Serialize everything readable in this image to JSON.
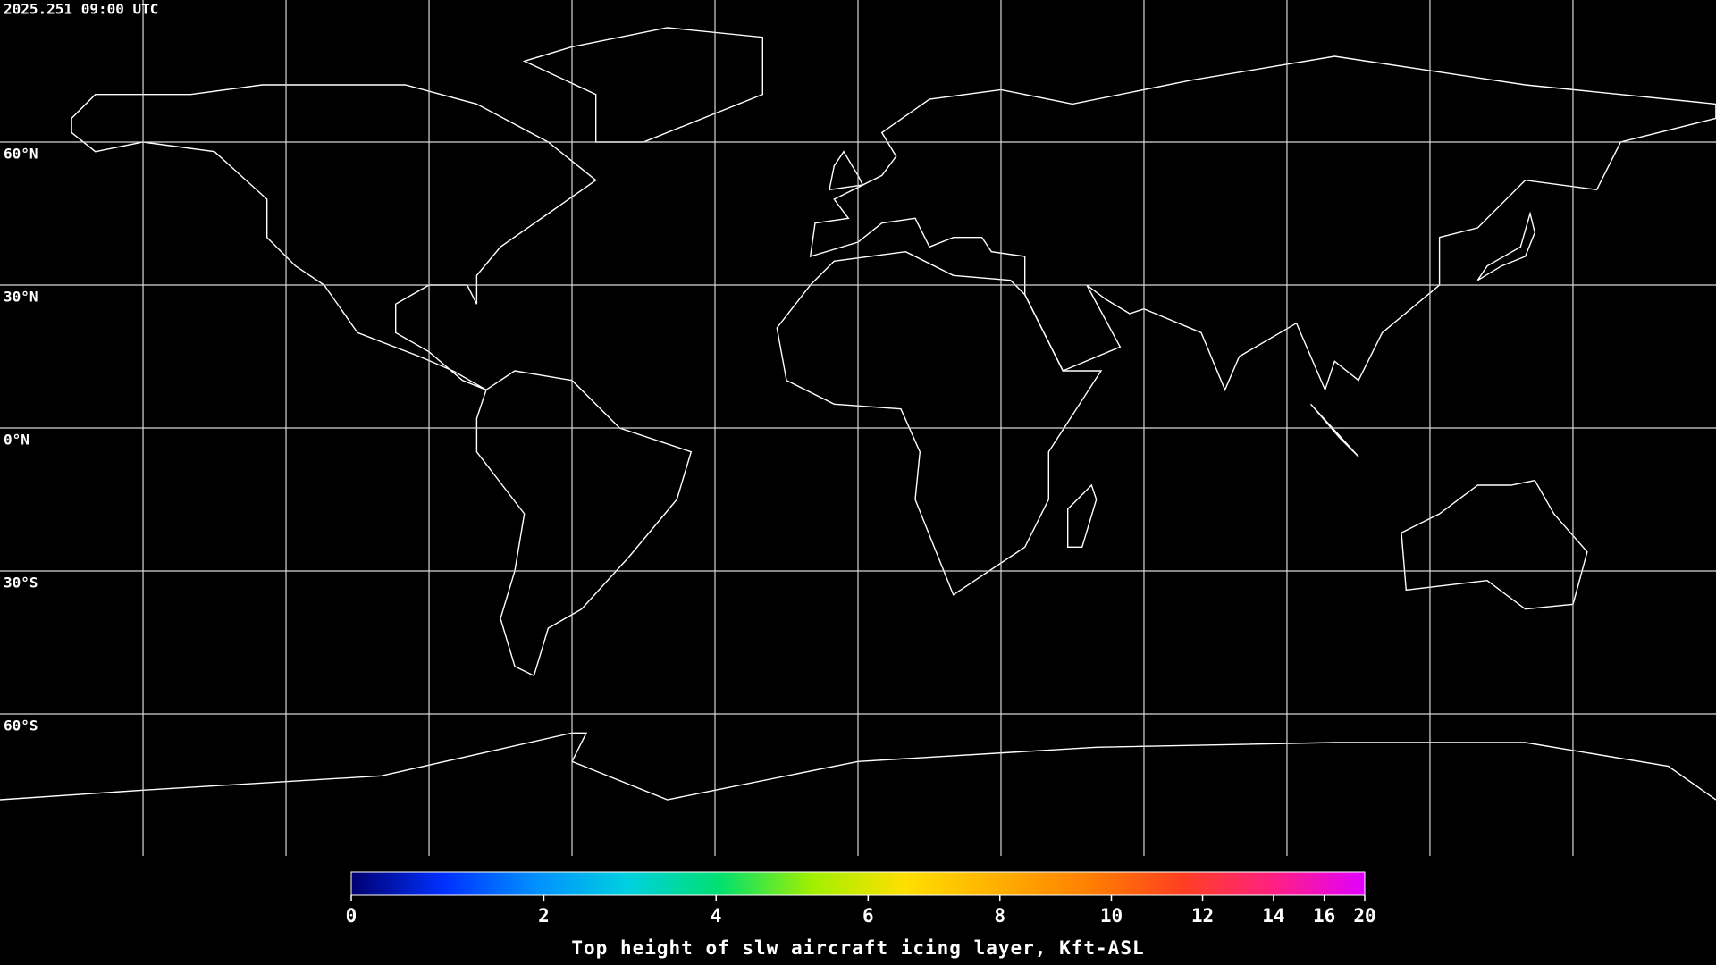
{
  "header": {
    "timestamp": "2025.251 09:00 UTC"
  },
  "map": {
    "lat_labels": [
      "60°N",
      "30°N",
      "0°N",
      "30°S",
      "60°S"
    ]
  },
  "colorbar": {
    "lim": [
      0,
      20
    ],
    "ticks": [
      0,
      2,
      4,
      6,
      8,
      10,
      12,
      14,
      16,
      20
    ],
    "colormap": [
      "#000070",
      "#0030ff",
      "#0090ff",
      "#00d0e0",
      "#00e070",
      "#a0f000",
      "#ffe000",
      "#ffb000",
      "#ff8000",
      "#ff4020",
      "#ff2080",
      "#e000ff"
    ],
    "title": "Top height of slw aircraft icing layer, Kft-ASL"
  }
}
